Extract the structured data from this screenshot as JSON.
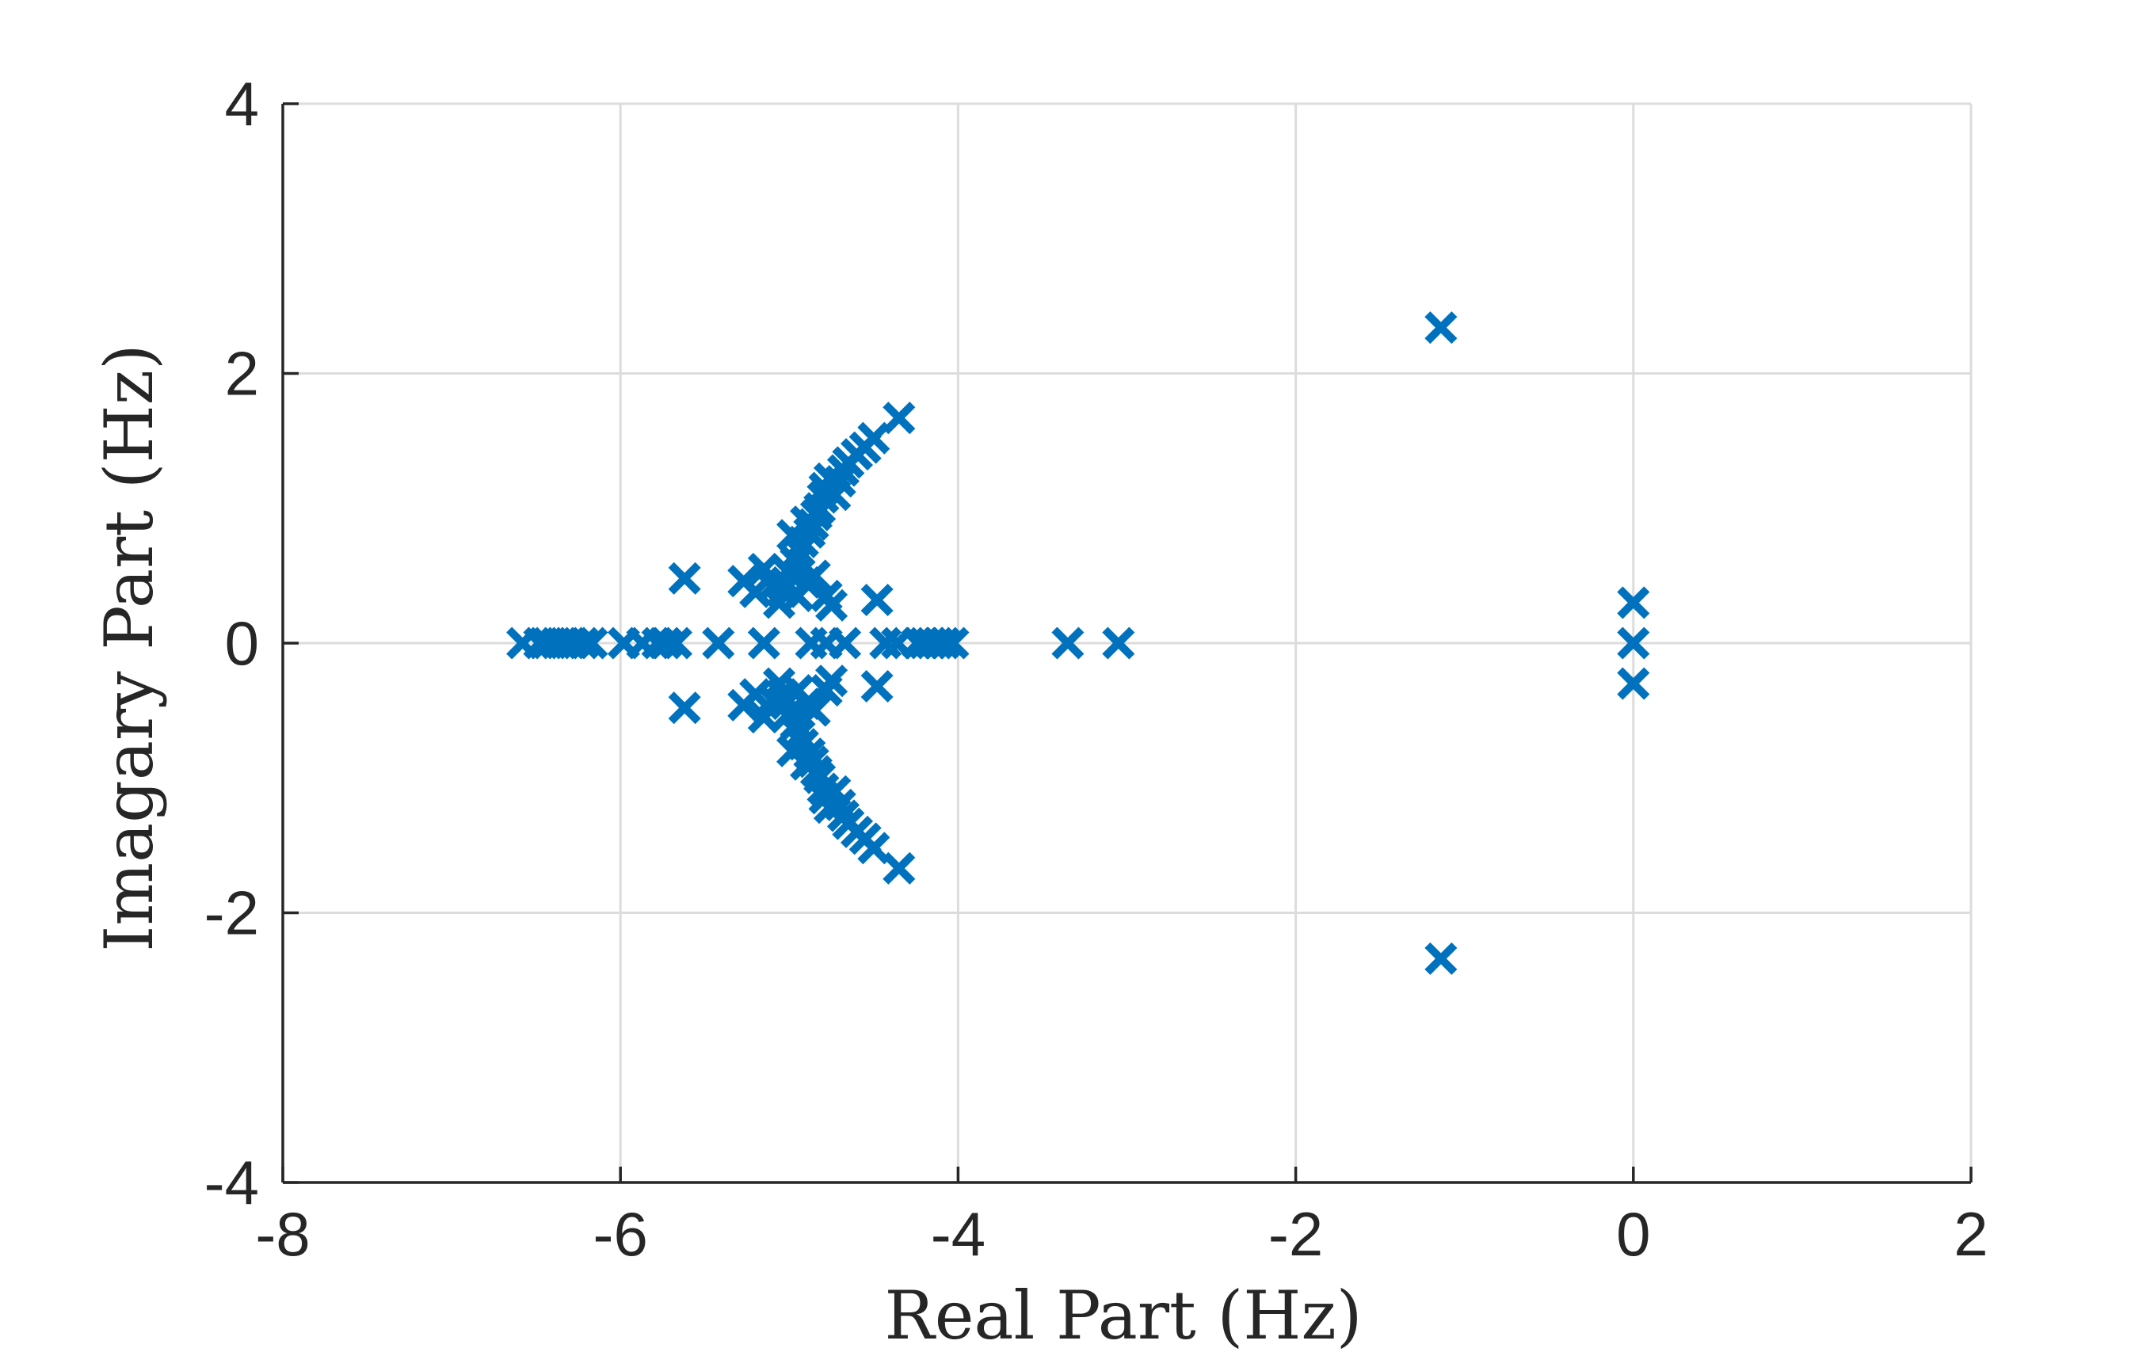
{
  "chart_data": {
    "type": "scatter",
    "xlabel": "Real Part (Hz)",
    "ylabel": "Imagary Part (Hz)",
    "xlim": [
      -8,
      2
    ],
    "ylim": [
      -4,
      4
    ],
    "xticks": [
      -8,
      -6,
      -4,
      -2,
      0,
      2
    ],
    "yticks": [
      -4,
      -2,
      0,
      2,
      4
    ],
    "xtick_labels": [
      "-8",
      "-6",
      "-4",
      "-2",
      "0",
      "2"
    ],
    "ytick_labels": [
      "-4",
      "-2",
      "0",
      "2",
      "4"
    ],
    "grid": true,
    "marker": "x",
    "color": "#0072BD",
    "series": [
      {
        "points": [
          [
            -6.58,
            0
          ],
          [
            -6.48,
            0
          ],
          [
            -6.43,
            0
          ],
          [
            -6.38,
            0
          ],
          [
            -6.33,
            0
          ],
          [
            -6.28,
            0
          ],
          [
            -6.22,
            0
          ],
          [
            -6.17,
            0
          ],
          [
            -5.98,
            0
          ],
          [
            -5.87,
            0
          ],
          [
            -5.78,
            0
          ],
          [
            -5.73,
            0
          ],
          [
            -5.67,
            0
          ],
          [
            -5.42,
            0
          ],
          [
            -5.15,
            0
          ],
          [
            -4.87,
            0
          ],
          [
            -4.78,
            0
          ],
          [
            -4.67,
            0
          ],
          [
            -4.43,
            0
          ],
          [
            -4.36,
            0
          ],
          [
            -4.24,
            0
          ],
          [
            -4.2,
            0
          ],
          [
            -4.16,
            0
          ],
          [
            -4.12,
            0
          ],
          [
            -4.08,
            0
          ],
          [
            -4.03,
            0
          ],
          [
            -3.35,
            0
          ],
          [
            -3.05,
            0
          ],
          [
            0,
            0
          ],
          [
            -1.14,
            2.34
          ],
          [
            -1.14,
            -2.34
          ],
          [
            0,
            0.3
          ],
          [
            0,
            -0.3
          ],
          [
            -4.35,
            1.67
          ],
          [
            -4.35,
            -1.67
          ],
          [
            -4.5,
            1.52
          ],
          [
            -4.5,
            -1.52
          ],
          [
            -4.55,
            1.45
          ],
          [
            -4.55,
            -1.45
          ],
          [
            -4.6,
            1.4
          ],
          [
            -4.6,
            -1.4
          ],
          [
            -4.65,
            1.34
          ],
          [
            -4.65,
            -1.34
          ],
          [
            -4.68,
            1.28
          ],
          [
            -4.68,
            -1.28
          ],
          [
            -4.7,
            1.2
          ],
          [
            -4.7,
            -1.2
          ],
          [
            -4.73,
            1.1
          ],
          [
            -4.73,
            -1.1
          ],
          [
            -4.76,
            1.22
          ],
          [
            -4.76,
            -1.22
          ],
          [
            -4.79,
            1.15
          ],
          [
            -4.79,
            -1.15
          ],
          [
            -4.8,
            1.08
          ],
          [
            -4.8,
            -1.08
          ],
          [
            -4.82,
            1.0
          ],
          [
            -4.82,
            -1.0
          ],
          [
            -4.84,
            0.95
          ],
          [
            -4.84,
            -0.95
          ],
          [
            -4.86,
            0.88
          ],
          [
            -4.86,
            -0.88
          ],
          [
            -4.88,
            0.82
          ],
          [
            -4.88,
            -0.82
          ],
          [
            -4.9,
            0.9
          ],
          [
            -4.9,
            -0.9
          ],
          [
            -4.92,
            0.75
          ],
          [
            -4.92,
            -0.75
          ],
          [
            -4.94,
            0.68
          ],
          [
            -4.94,
            -0.68
          ],
          [
            -4.96,
            0.6
          ],
          [
            -4.96,
            -0.6
          ],
          [
            -4.98,
            0.8
          ],
          [
            -4.98,
            -0.8
          ],
          [
            -5.0,
            0.52
          ],
          [
            -5.0,
            -0.52
          ],
          [
            -5.02,
            0.45
          ],
          [
            -5.02,
            -0.45
          ],
          [
            -5.04,
            0.38
          ],
          [
            -5.04,
            -0.38
          ],
          [
            -5.06,
            0.3
          ],
          [
            -5.06,
            -0.3
          ],
          [
            -4.95,
            0.35
          ],
          [
            -4.95,
            -0.35
          ],
          [
            -4.9,
            0.45
          ],
          [
            -4.9,
            -0.45
          ],
          [
            -4.85,
            0.5
          ],
          [
            -4.85,
            -0.5
          ],
          [
            -5.1,
            0.42
          ],
          [
            -5.1,
            -0.42
          ],
          [
            -5.15,
            0.55
          ],
          [
            -5.15,
            -0.55
          ],
          [
            -5.2,
            0.38
          ],
          [
            -5.2,
            -0.38
          ],
          [
            -5.27,
            0.46
          ],
          [
            -5.27,
            -0.46
          ],
          [
            -5.62,
            0.48
          ],
          [
            -5.62,
            -0.48
          ],
          [
            -4.78,
            0.35
          ],
          [
            -4.78,
            -0.35
          ],
          [
            -4.75,
            0.28
          ],
          [
            -4.75,
            -0.28
          ],
          [
            -4.48,
            0.32
          ],
          [
            -4.48,
            -0.32
          ]
        ]
      }
    ]
  }
}
